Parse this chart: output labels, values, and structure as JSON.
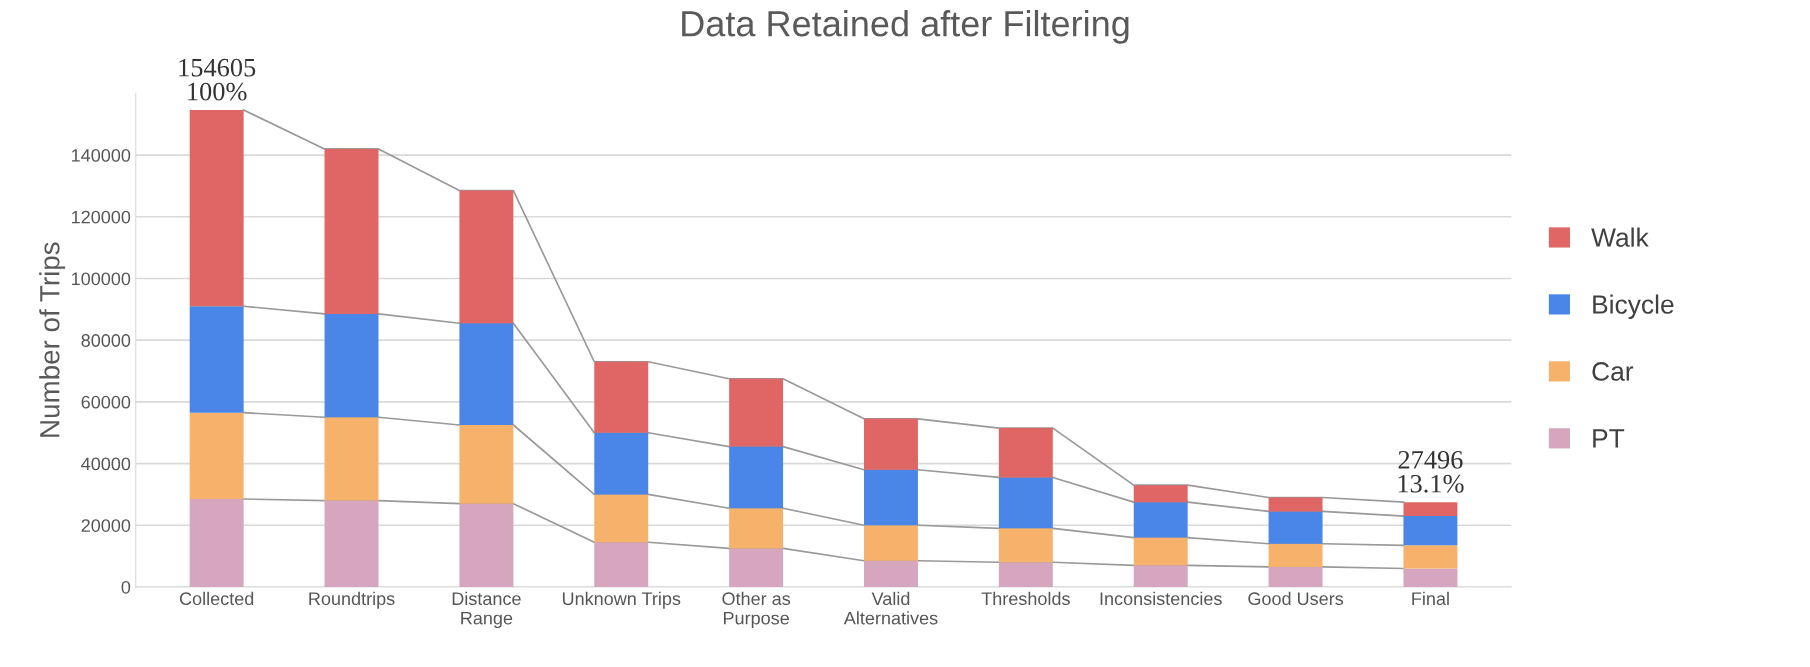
{
  "chart_data": {
    "type": "bar",
    "stacked": true,
    "title": "Data Retained after Filtering",
    "ylabel": "Number of Trips",
    "categories": [
      "Collected",
      "Roundtrips",
      "Distance\nRange",
      "Unknown Trips",
      "Other as\nPurpose",
      "Valid\nAlternatives",
      "Thresholds",
      "Inconsistencies",
      "Good Users",
      "Final"
    ],
    "series": [
      {
        "name": "PT",
        "color": "#d5a6bd",
        "values": [
          28500,
          28000,
          27000,
          14500,
          12500,
          8500,
          8000,
          7000,
          6500,
          6000
        ]
      },
      {
        "name": "Car",
        "color": "#f6b26b",
        "values": [
          28000,
          27000,
          25500,
          15500,
          13000,
          11500,
          11000,
          9000,
          7500,
          7500
        ]
      },
      {
        "name": "Bicycle",
        "color": "#4a86e8",
        "values": [
          34500,
          33500,
          33000,
          20000,
          20000,
          18000,
          16500,
          11500,
          10500,
          9500
        ]
      },
      {
        "name": "Walk",
        "color": "#e06666",
        "values": [
          63605,
          53500,
          43000,
          23000,
          22000,
          16500,
          16000,
          5500,
          4500,
          4496
        ]
      }
    ],
    "ylim": [
      0,
      160000
    ],
    "yticks": [
      0,
      20000,
      40000,
      60000,
      80000,
      100000,
      120000,
      140000
    ],
    "grid": "y",
    "legend": "right",
    "annotations": [
      {
        "text": "154605\n100%",
        "x": "Collected",
        "y": 154605
      },
      {
        "text": "27496\n13.1%",
        "x": "Final",
        "y": 27496
      }
    ]
  }
}
